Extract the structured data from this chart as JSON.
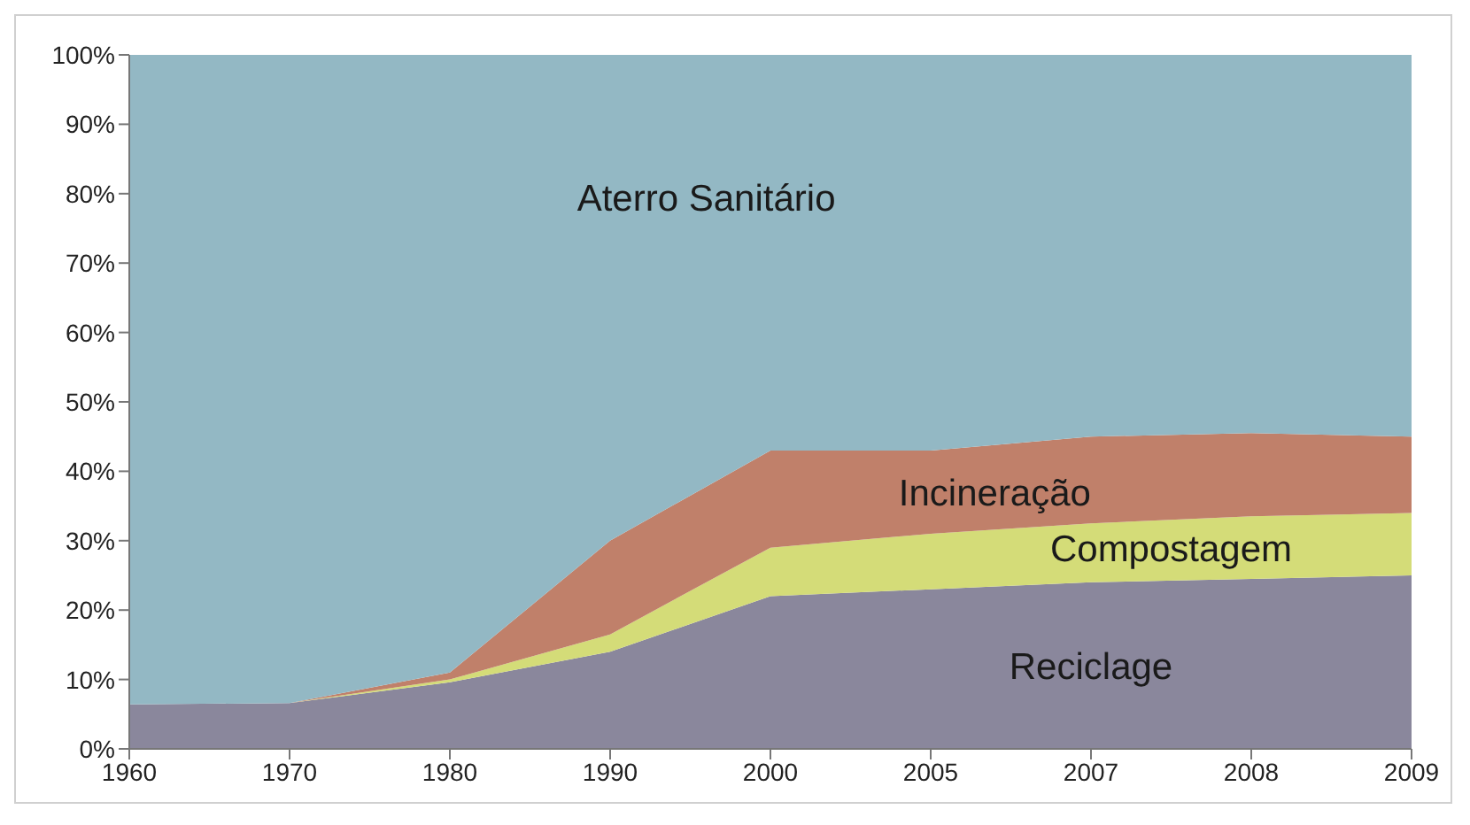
{
  "chart_data": {
    "type": "area",
    "stacked": true,
    "categories": [
      "1960",
      "1970",
      "1980",
      "1990",
      "2000",
      "2005",
      "2007",
      "2008",
      "2009"
    ],
    "series": [
      {
        "name": "Reciclage",
        "color": "#8a879c",
        "values": [
          6.4,
          6.6,
          9.6,
          14,
          22,
          23,
          24,
          24.5,
          25
        ]
      },
      {
        "name": "Compostagem",
        "color": "#d4dc78",
        "values": [
          0,
          0,
          0.4,
          2.5,
          7,
          8,
          8.5,
          9,
          9
        ]
      },
      {
        "name": "Incineração",
        "color": "#c0806a",
        "values": [
          0,
          0,
          1,
          13.5,
          14,
          12,
          12.5,
          12,
          11
        ]
      },
      {
        "name": "Aterro Sanitário",
        "color": "#93b8c4",
        "values": [
          93.6,
          93.4,
          89,
          70,
          57,
          57,
          55,
          54.5,
          55
        ]
      }
    ],
    "ylim": [
      0,
      100
    ],
    "yticks": [
      {
        "value": 0,
        "label": "0%"
      },
      {
        "value": 10,
        "label": "10%"
      },
      {
        "value": 20,
        "label": "20%"
      },
      {
        "value": 30,
        "label": "30%"
      },
      {
        "value": 40,
        "label": "40%"
      },
      {
        "value": 50,
        "label": "50%"
      },
      {
        "value": 60,
        "label": "60%"
      },
      {
        "value": 70,
        "label": "70%"
      },
      {
        "value": 80,
        "label": "80%"
      },
      {
        "value": 90,
        "label": "90%"
      },
      {
        "value": 100,
        "label": "100%"
      }
    ],
    "grid": false,
    "legend": false
  }
}
